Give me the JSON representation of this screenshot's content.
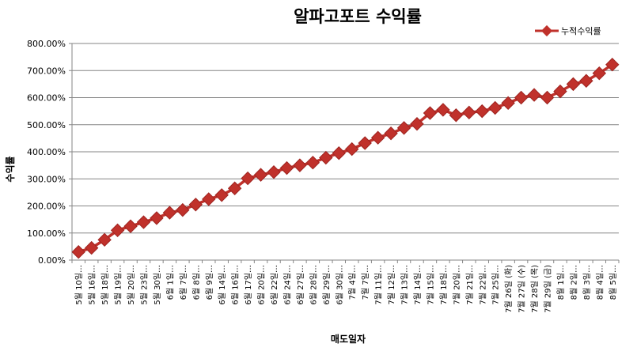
{
  "chart_data": {
    "type": "line",
    "title": "알파고포트 수익률",
    "xlabel": "매도일자",
    "ylabel": "수익률",
    "ylim": [
      0,
      800
    ],
    "yticks": [
      "0.00%",
      "100.00%",
      "200.00%",
      "300.00%",
      "400.00%",
      "500.00%",
      "600.00%",
      "700.00%",
      "800.00%"
    ],
    "ytick_values": [
      0,
      100,
      200,
      300,
      400,
      500,
      600,
      700,
      800
    ],
    "grid": true,
    "legend_position": "top-right",
    "series_color": "#c0312b",
    "categories": [
      "5월 10일…",
      "5월 16일…",
      "5월 18일…",
      "5월 19일…",
      "5월 20일…",
      "5월 23일…",
      "5월 30일…",
      "6월 1일…",
      "6월 7일…",
      "6월 8일…",
      "6월 9일…",
      "6월 14일…",
      "6월 16일…",
      "6월 17일…",
      "6월 20일…",
      "6월 22일…",
      "6월 24일…",
      "6월 27일…",
      "6월 28일…",
      "6월 29일…",
      "6월 30일…",
      "7월 4일…",
      "7월 7일…",
      "7월 11일…",
      "7월 12일…",
      "7월 13일…",
      "7월 14일…",
      "7월 15일…",
      "7월 18일…",
      "7월 20일…",
      "7월 21일…",
      "7월 22일…",
      "7월 25일…",
      "7월 26일 (화)",
      "7월 27일 (수)",
      "7월 28일 (목)",
      "7월 29일 (금)",
      "8월 1일…",
      "8월 2일…",
      "8월 3일…",
      "8월 4일…",
      "8월 5일…"
    ],
    "series": [
      {
        "name": "누적수익률",
        "values": [
          30,
          45,
          75,
          110,
          125,
          140,
          155,
          175,
          185,
          205,
          225,
          240,
          265,
          302,
          315,
          325,
          340,
          350,
          360,
          378,
          395,
          410,
          432,
          452,
          468,
          488,
          503,
          543,
          555,
          535,
          545,
          550,
          562,
          580,
          600,
          610,
          600,
          623,
          650,
          662,
          690,
          722
        ]
      }
    ]
  }
}
